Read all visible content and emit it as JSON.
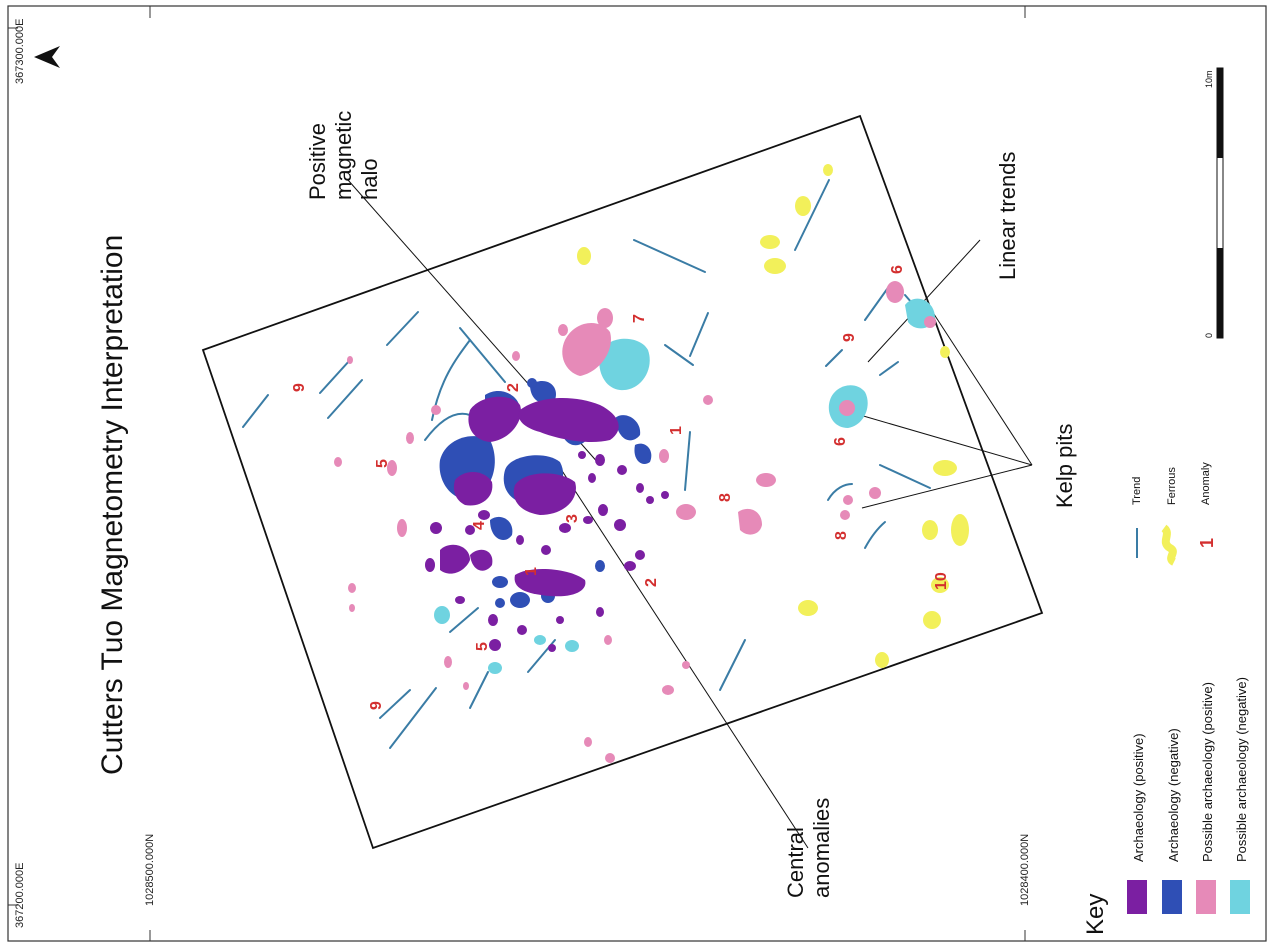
{
  "title": "Cutters Tuo Magnetometry Interpretation",
  "coords": {
    "top_left": "367300.000E",
    "bottom_left": "367200.000E",
    "left_bottom": "1028500.000N",
    "right_bottom": "1028400.000N"
  },
  "callouts": {
    "halo": [
      "Positive",
      "magnetic",
      "halo"
    ],
    "central": [
      "Central",
      "anomalies"
    ],
    "linear": "Linear trends",
    "kelp": "Kelp pits"
  },
  "scale": {
    "zero": "0",
    "end": "10m"
  },
  "key": {
    "heading": "Key",
    "items": [
      {
        "label": "Archaeology (positive)",
        "color": "#7b1fa2"
      },
      {
        "label": "Archaeology (negative)",
        "color": "#2f4fb5"
      },
      {
        "label": "Possible archaeology (positive)",
        "color": "#e68ab8"
      },
      {
        "label": "Possible archaeology (negative)",
        "color": "#6fd3e0"
      },
      {
        "label": "Trend",
        "color": "#3a7ca5"
      },
      {
        "label": "Ferrous",
        "color": "#f2f05a"
      },
      {
        "label": "Anomaly",
        "sample": "1",
        "color": "#d32f2f"
      }
    ]
  },
  "anomaly_numbers": [
    "9",
    "5",
    "2",
    "1",
    "4",
    "3",
    "1",
    "2",
    "5",
    "9",
    "7",
    "8",
    "9",
    "6",
    "6",
    "8",
    "10"
  ],
  "north_arrow": "north-arrow-icon"
}
